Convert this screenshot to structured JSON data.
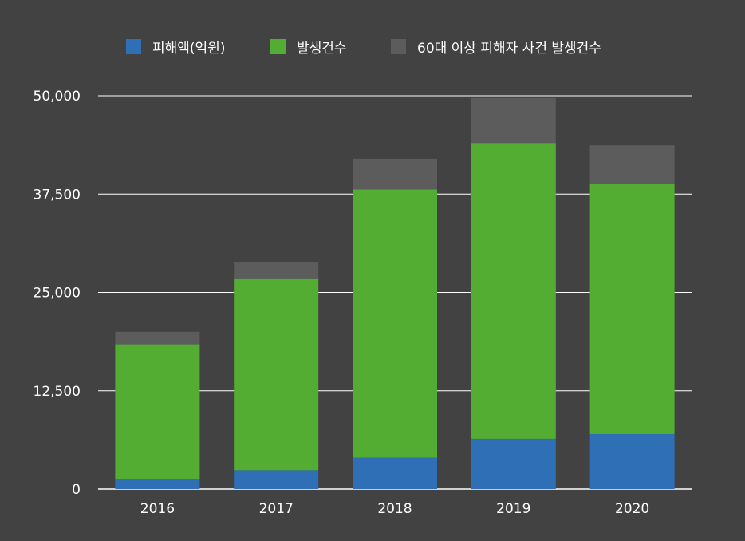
{
  "chart_data": {
    "type": "bar",
    "stacked": true,
    "categories": [
      "2016",
      "2017",
      "2018",
      "2019",
      "2020"
    ],
    "series": [
      {
        "name": "피해액(억원)",
        "color": "#2f6fb6",
        "values": [
          1300,
          2400,
          4000,
          6400,
          7000
        ]
      },
      {
        "name": "발생건수",
        "color": "#52ad32",
        "values": [
          17100,
          24300,
          34100,
          37600,
          31800
        ]
      },
      {
        "name": "60대 이상 피해자 사건 발생건수",
        "color": "#5c5c5c",
        "values": [
          1600,
          2200,
          3900,
          5700,
          4900
        ]
      }
    ],
    "ylim": [
      0,
      50000
    ],
    "yticks": [
      "0",
      "12,500",
      "25,000",
      "37,500",
      "50,000"
    ],
    "grid": true,
    "legend_position": "top",
    "colors": {
      "background": "#424242",
      "gridline": "#ffffff",
      "text": "#ffffff"
    }
  }
}
